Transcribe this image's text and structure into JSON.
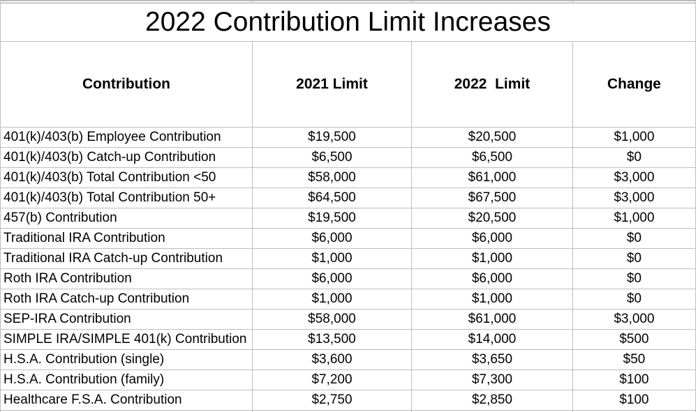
{
  "title": "2022 Contribution Limit Increases",
  "chart_data": {
    "type": "table",
    "title": "2022 Contribution Limit Increases",
    "columns": [
      "Contribution",
      "2021 Limit",
      "2022  Limit",
      "Change"
    ],
    "rows": [
      [
        "401(k)/403(b) Employee Contribution",
        "$19,500",
        "$20,500",
        "$1,000"
      ],
      [
        "401(k)/403(b) Catch-up Contribution",
        "$6,500",
        "$6,500",
        "$0"
      ],
      [
        "401(k)/403(b) Total Contribution <50",
        "$58,000",
        "$61,000",
        "$3,000"
      ],
      [
        "401(k)/403(b) Total Contribution 50+",
        "$64,500",
        "$67,500",
        "$3,000"
      ],
      [
        "457(b) Contribution",
        "$19,500",
        "$20,500",
        "$1,000"
      ],
      [
        "Traditional IRA Contribution",
        "$6,000",
        "$6,000",
        "$0"
      ],
      [
        "Traditional IRA Catch-up Contribution",
        "$1,000",
        "$1,000",
        "$0"
      ],
      [
        "Roth IRA Contribution",
        "$6,000",
        "$6,000",
        "$0"
      ],
      [
        "Roth IRA Catch-up Contribution",
        "$1,000",
        "$1,000",
        "$0"
      ],
      [
        "SEP-IRA Contribution",
        "$58,000",
        "$61,000",
        "$3,000"
      ],
      [
        "SIMPLE IRA/SIMPLE 401(k) Contribution",
        "$13,500",
        "$14,000",
        "$500"
      ],
      [
        "H.S.A. Contribution (single)",
        "$3,600",
        "$3,650",
        "$50"
      ],
      [
        "H.S.A. Contribution (family)",
        "$7,200",
        "$7,300",
        "$100"
      ],
      [
        "Healthcare F.S.A. Contribution",
        "$2,750",
        "$2,850",
        "$100"
      ]
    ],
    "layout": {
      "header_align": "center",
      "first_column_align": "left",
      "value_columns_align": "center",
      "grid": true
    },
    "colors": {
      "grid_line": "#bdbdbd",
      "text": "#000000",
      "background": "#ffffff",
      "top_sliver_fill": "#ebebeb"
    }
  }
}
